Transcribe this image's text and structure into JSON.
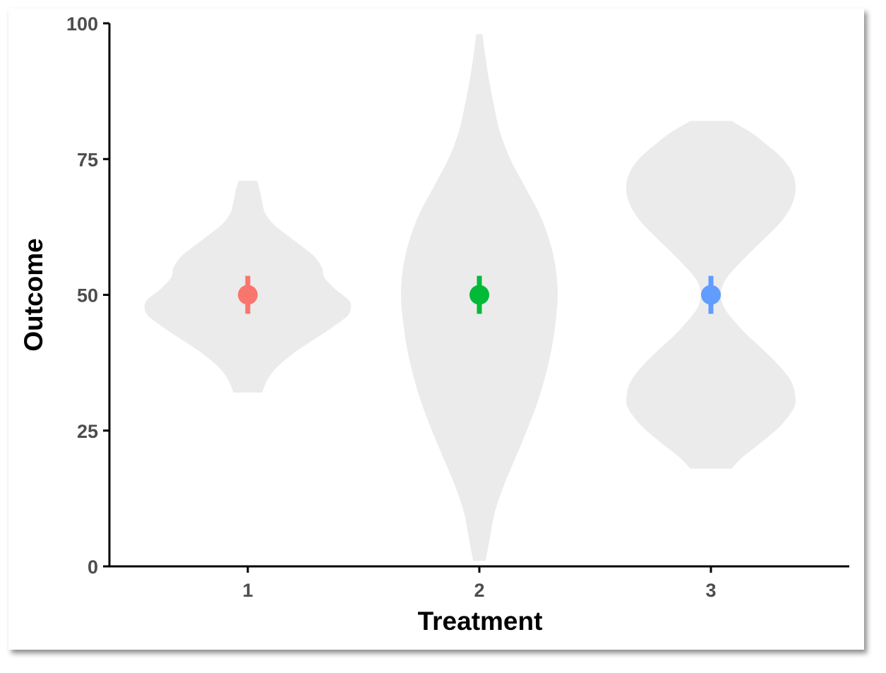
{
  "chart_data": {
    "type": "violin",
    "xlabel": "Treatment",
    "ylabel": "Outcome",
    "categories": [
      "1",
      "2",
      "3"
    ],
    "ylim": [
      0,
      100
    ],
    "yticks": [
      "0",
      "25",
      "50",
      "75",
      "100"
    ],
    "grid": false,
    "violins": [
      {
        "category": "1",
        "color": "#F8766D",
        "mean": 50,
        "error": [
          46.5,
          53.5
        ],
        "range": [
          32,
          71
        ],
        "profile": [
          [
            32,
            0.14
          ],
          [
            34,
            0.18
          ],
          [
            36,
            0.25
          ],
          [
            38,
            0.36
          ],
          [
            40,
            0.5
          ],
          [
            42,
            0.66
          ],
          [
            44,
            0.82
          ],
          [
            46,
            0.96
          ],
          [
            47.5,
            1.0
          ],
          [
            49,
            0.98
          ],
          [
            51,
            0.85
          ],
          [
            53,
            0.75
          ],
          [
            54,
            0.73
          ],
          [
            55,
            0.72
          ],
          [
            57,
            0.65
          ],
          [
            59,
            0.52
          ],
          [
            61,
            0.38
          ],
          [
            63,
            0.25
          ],
          [
            65,
            0.17
          ],
          [
            67,
            0.14
          ],
          [
            69,
            0.12
          ],
          [
            71,
            0.09
          ]
        ]
      },
      {
        "category": "2",
        "color": "#00BA38",
        "mean": 50,
        "error": [
          46.5,
          53.5
        ],
        "range": [
          1,
          98
        ],
        "profile": [
          [
            1,
            0.06
          ],
          [
            5,
            0.1
          ],
          [
            10,
            0.15
          ],
          [
            15,
            0.24
          ],
          [
            20,
            0.35
          ],
          [
            25,
            0.46
          ],
          [
            30,
            0.56
          ],
          [
            35,
            0.64
          ],
          [
            40,
            0.7
          ],
          [
            45,
            0.74
          ],
          [
            50,
            0.76
          ],
          [
            55,
            0.74
          ],
          [
            60,
            0.68
          ],
          [
            65,
            0.58
          ],
          [
            70,
            0.44
          ],
          [
            75,
            0.3
          ],
          [
            80,
            0.2
          ],
          [
            85,
            0.14
          ],
          [
            90,
            0.09
          ],
          [
            95,
            0.05
          ],
          [
            98,
            0.03
          ]
        ]
      },
      {
        "category": "3",
        "color": "#619CFF",
        "mean": 50,
        "error": [
          46.5,
          53.5
        ],
        "range": [
          18,
          82
        ],
        "profile": [
          [
            18,
            0.2
          ],
          [
            20,
            0.3
          ],
          [
            23,
            0.5
          ],
          [
            26,
            0.68
          ],
          [
            29,
            0.8
          ],
          [
            31,
            0.82
          ],
          [
            34,
            0.78
          ],
          [
            37,
            0.66
          ],
          [
            40,
            0.5
          ],
          [
            43,
            0.33
          ],
          [
            46,
            0.19
          ],
          [
            48,
            0.12
          ],
          [
            50,
            0.1
          ],
          [
            52,
            0.12
          ],
          [
            54,
            0.19
          ],
          [
            57,
            0.34
          ],
          [
            60,
            0.5
          ],
          [
            63,
            0.66
          ],
          [
            66,
            0.77
          ],
          [
            69,
            0.82
          ],
          [
            72,
            0.8
          ],
          [
            75,
            0.7
          ],
          [
            78,
            0.52
          ],
          [
            80,
            0.38
          ],
          [
            82,
            0.2
          ]
        ]
      }
    ]
  }
}
